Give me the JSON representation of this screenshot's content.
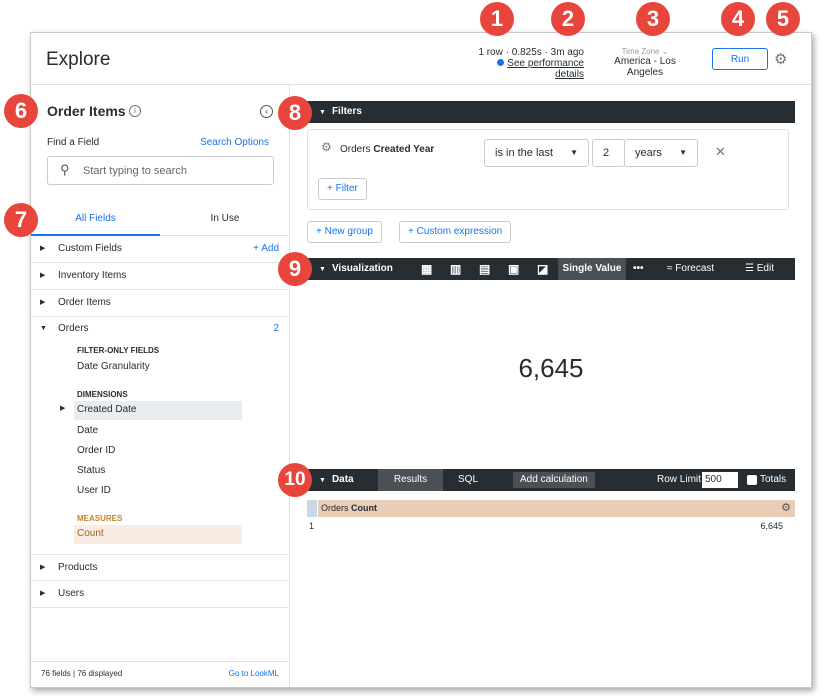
{
  "header": {
    "title": "Explore",
    "stats": "1 row · 0.825s · 3m ago",
    "perf_link": "See performance details",
    "tz_label": "Time Zone",
    "tz_value": "America - Los Angeles",
    "run": "Run"
  },
  "markers": [
    "1",
    "2",
    "3",
    "4",
    "5",
    "6",
    "7",
    "8",
    "9",
    "10"
  ],
  "sidebar": {
    "title": "Order Items",
    "find_label": "Find a Field",
    "search_options": "Search Options",
    "search_placeholder": "Start typing to search",
    "tabs": [
      "All Fields",
      "In Use"
    ],
    "groups": {
      "custom": "Custom Fields",
      "add": "+ Add",
      "inventory": "Inventory Items",
      "order_items": "Order Items",
      "orders": "Orders",
      "orders_count": "2",
      "products": "Products",
      "users": "Users"
    },
    "orders_fields": {
      "filter_only": "FILTER-ONLY FIELDS",
      "date_gran": "Date Granularity",
      "dimensions": "DIMENSIONS",
      "created_date": "Created Date",
      "date": "Date",
      "order_id": "Order ID",
      "status": "Status",
      "user_id": "User ID",
      "measures": "MEASURES",
      "count": "Count"
    },
    "footer": "76 fields | 76 displayed",
    "lookml": "Go to LookML"
  },
  "filters": {
    "bar": "Filters",
    "field_view": "Orders",
    "field_name": "Created Year",
    "operator": "is in the last",
    "value": "2",
    "unit": "years",
    "add_filter": "+ Filter",
    "new_group": "+ New group",
    "custom_expr": "+ Custom expression"
  },
  "viz": {
    "bar": "Visualization",
    "active": "Single Value",
    "more": "•••",
    "forecast": "Forecast",
    "edit": "Edit",
    "value": "6,645",
    "icons": [
      "table-icon",
      "column-chart-icon",
      "bar-chart-icon",
      "scatter-icon",
      "line-chart-icon"
    ]
  },
  "data": {
    "bar": "Data",
    "results": "Results",
    "sql": "SQL",
    "add_calc": "Add calculation",
    "row_limit_label": "Row Limit",
    "row_limit": "500",
    "totals": "Totals",
    "col_view": "Orders",
    "col_name": "Count",
    "rows": [
      {
        "n": "1",
        "v": "6,645"
      }
    ]
  },
  "colors": {
    "marker": "#e8453c",
    "bar": "#262d33",
    "accent": "#1a73e8",
    "measure": "#c6832c",
    "header_cell": "#e8cdb7"
  }
}
